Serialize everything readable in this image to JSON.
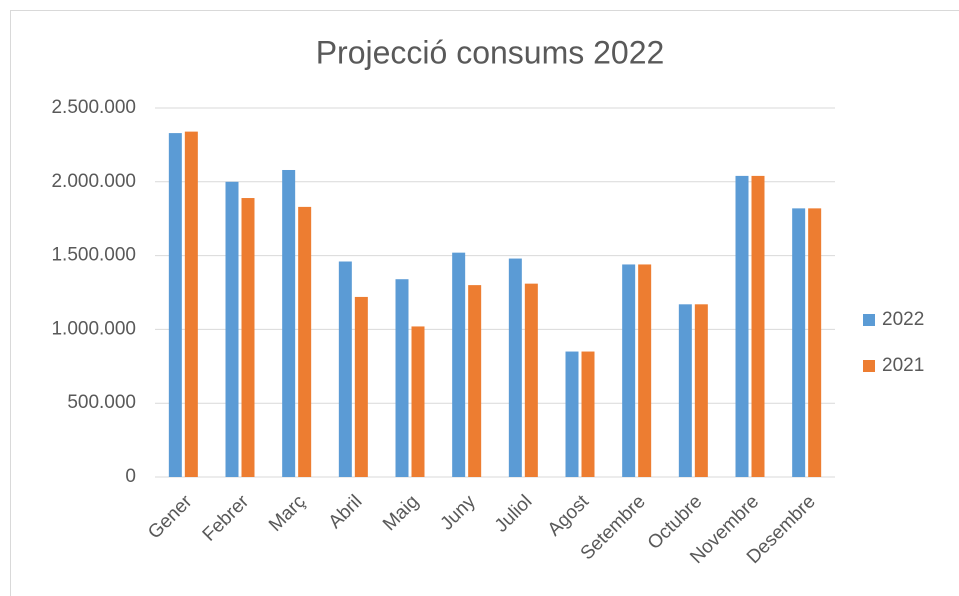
{
  "chart_data": {
    "type": "bar",
    "title": "Projecció consums 2022",
    "categories": [
      "Gener",
      "Febrer",
      "Març",
      "Abril",
      "Maig",
      "Juny",
      "Juliol",
      "Agost",
      "Setembre",
      "Octubre",
      "Novembre",
      "Desembre"
    ],
    "series": [
      {
        "name": "2022",
        "color": "#5b9bd5",
        "values": [
          2330000,
          2000000,
          2080000,
          1460000,
          1340000,
          1520000,
          1480000,
          850000,
          1440000,
          1170000,
          2040000,
          1820000
        ]
      },
      {
        "name": "2021",
        "color": "#ed7d31",
        "values": [
          2340000,
          1890000,
          1830000,
          1220000,
          1020000,
          1300000,
          1310000,
          850000,
          1440000,
          1170000,
          2040000,
          1820000
        ]
      }
    ],
    "ylim": [
      0,
      2500000
    ],
    "yticks": [
      0,
      {
        "value": 500000,
        "label": "500.000"
      },
      {
        "value": 1000000,
        "label": "1.000.000"
      },
      {
        "value": 1500000,
        "label": "1.500.000"
      },
      {
        "value": 2000000,
        "label": "2.000.000"
      },
      {
        "value": 2500000,
        "label": "2.500.000"
      }
    ],
    "grid": true,
    "legend": "right"
  }
}
